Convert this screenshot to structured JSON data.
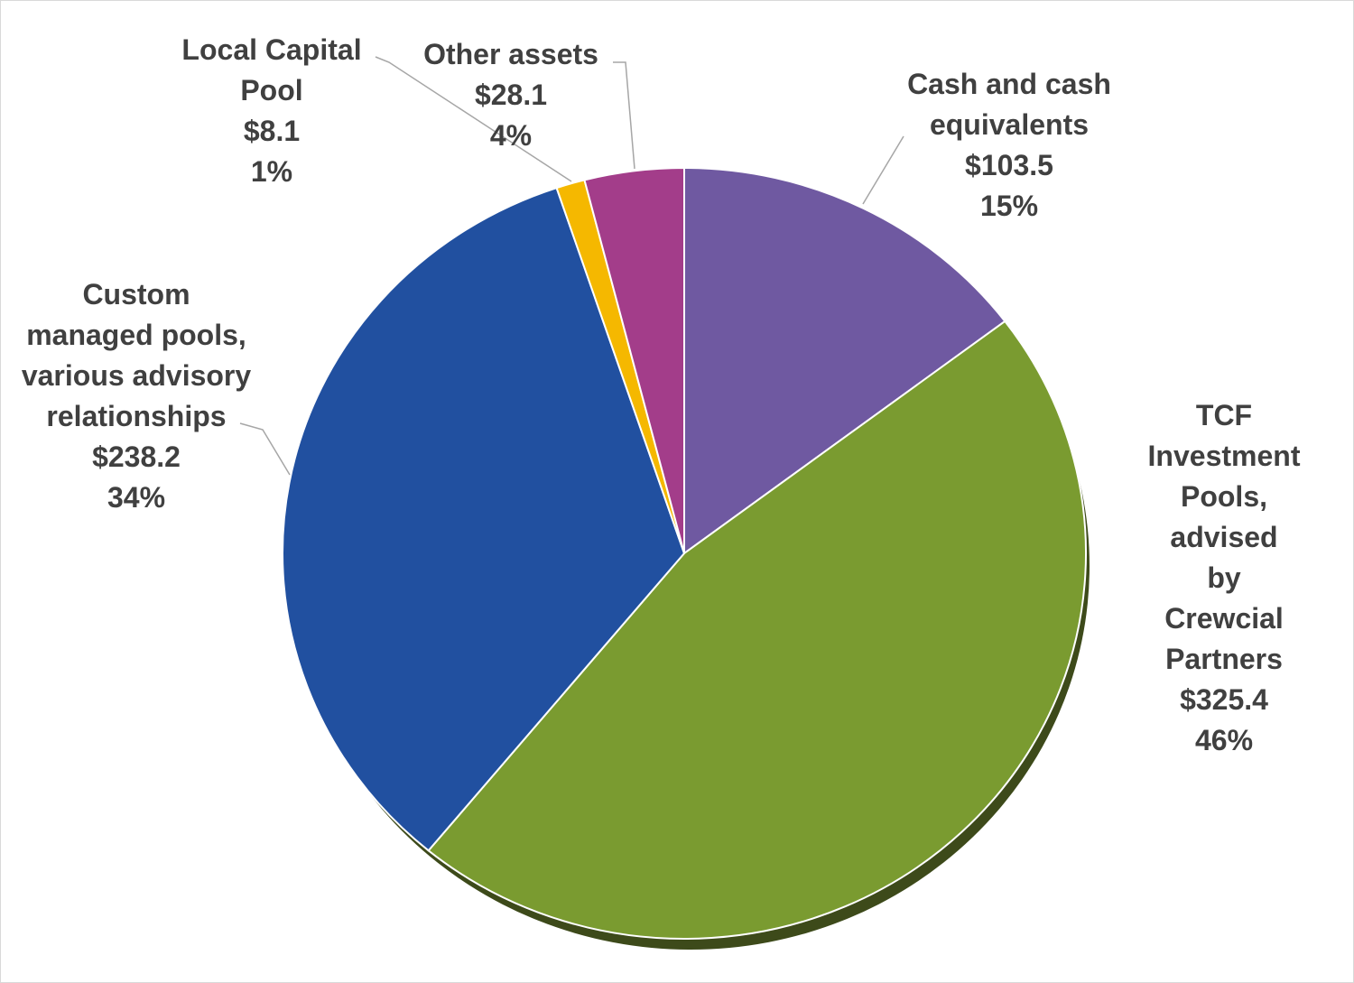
{
  "chart_data": {
    "type": "pie",
    "categories": [
      "Cash and cash\nequivalents",
      "TCF Investment\nPools, advised\nby Crewcial\nPartners",
      "Custom\nmanaged pools,\nvarious advisory\nrelationships",
      "Local Capital\nPool",
      "Other assets"
    ],
    "values": [
      103.5,
      325.4,
      238.2,
      8.1,
      28.1
    ],
    "value_labels": [
      "$103.5",
      "$325.4",
      "$238.2",
      "$8.1",
      "$28.1"
    ],
    "percent_labels": [
      "15%",
      "46%",
      "34%",
      "1%",
      "4%"
    ],
    "colors": [
      "#6f59a1",
      "#7a9b30",
      "#2150a0",
      "#f5b800",
      "#a33d8a"
    ]
  }
}
